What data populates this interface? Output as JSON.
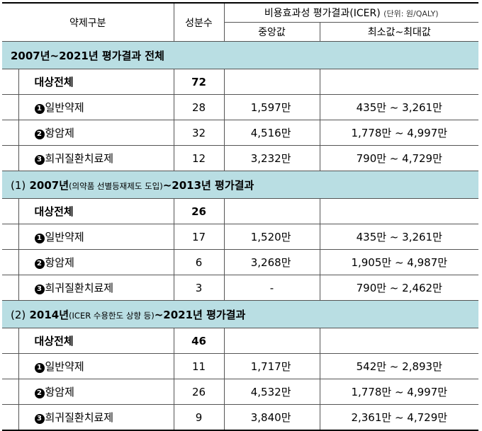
{
  "header": {
    "col_category": "약제구분",
    "col_count": "성분수",
    "col_icer_group": "비용효과성 평가결과(ICER)",
    "col_icer_unit": "(단위: 원/QALY)",
    "col_median": "중앙값",
    "col_range": "최소값~최대값"
  },
  "sections": [
    {
      "title_bold_1": "2007년~2021년 평가결과 전체",
      "title_paren": "",
      "title_small": "",
      "title_bold_2": "",
      "rows": [
        {
          "mark": "",
          "label": "대상전체",
          "count": "72",
          "median": "",
          "range": "",
          "total": true
        },
        {
          "mark": "1",
          "label": "일반약제",
          "count": "28",
          "median": "1,597만",
          "range": "435만 ~ 3,261만"
        },
        {
          "mark": "2",
          "label": "항암제",
          "count": "32",
          "median": "4,516만",
          "range": "1,778만 ~ 4,997만"
        },
        {
          "mark": "3",
          "label": "희귀질환치료제",
          "count": "12",
          "median": "3,232만",
          "range": "790만 ~ 4,729만"
        }
      ]
    },
    {
      "title_paren": "(1)",
      "title_bold_1": "2007년",
      "title_small": "(의약품 선별등재제도 도입)",
      "title_bold_2": "~2013년 평가결과",
      "rows": [
        {
          "mark": "",
          "label": "대상전체",
          "count": "26",
          "median": "",
          "range": "",
          "total": true
        },
        {
          "mark": "1",
          "label": "일반약제",
          "count": "17",
          "median": "1,520만",
          "range": "435만 ~ 3,261만"
        },
        {
          "mark": "2",
          "label": "항암제",
          "count": "6",
          "median": "3,268만",
          "range": "1,905만 ~ 4,987만"
        },
        {
          "mark": "3",
          "label": "희귀질환치료제",
          "count": "3",
          "median": "-",
          "range": "790만 ~ 2,462만"
        }
      ]
    },
    {
      "title_paren": "(2)",
      "title_bold_1": "2014년",
      "title_small": "(ICER 수용한도 상향 등)",
      "title_bold_2": "~2021년 평가결과",
      "rows": [
        {
          "mark": "",
          "label": "대상전체",
          "count": "46",
          "median": "",
          "range": "",
          "total": true
        },
        {
          "mark": "1",
          "label": "일반약제",
          "count": "11",
          "median": "1,717만",
          "range": "542만 ~ 2,893만"
        },
        {
          "mark": "2",
          "label": "항암제",
          "count": "26",
          "median": "4,532만",
          "range": "1,778만 ~ 4,997만"
        },
        {
          "mark": "3",
          "label": "희귀질환치료제",
          "count": "9",
          "median": "3,840만",
          "range": "2,361만 ~ 4,729만"
        }
      ]
    }
  ]
}
